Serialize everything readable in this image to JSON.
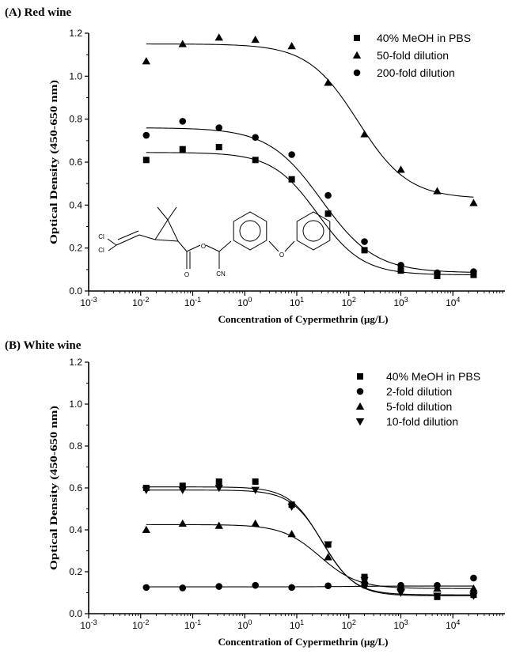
{
  "chart_data": [
    {
      "type": "scatter",
      "title": "(A) Red wine",
      "xlabel": "Concentration of Cypermethrin (μg/L)",
      "ylabel": "Optical Density (450-650 nm)",
      "xscale": "log",
      "xlim": [
        0.001,
        100000
      ],
      "ylim": [
        0.0,
        1.2
      ],
      "xticks": [
        "10-3",
        "10-2",
        "10-1",
        "100",
        "101",
        "102",
        "103",
        "104"
      ],
      "yticks": [
        "0.0",
        "0.2",
        "0.4",
        "0.6",
        "0.8",
        "1.0",
        "1.2"
      ],
      "legend_position": "top-right",
      "fitted_curves": true,
      "x": [
        0.0128,
        0.064,
        0.32,
        1.6,
        8,
        40,
        200,
        1000,
        5000,
        25000
      ],
      "series": [
        {
          "name": "40% MeOH in PBS",
          "marker": "square",
          "values": [
            0.61,
            0.66,
            0.67,
            0.61,
            0.52,
            0.36,
            0.19,
            0.095,
            0.07,
            0.075
          ],
          "fit": {
            "top": 0.645,
            "bottom": 0.075,
            "ec50": 25,
            "slope": 1.0
          }
        },
        {
          "name": "50-fold dilution",
          "marker": "triangle-up",
          "values": [
            1.07,
            1.15,
            1.18,
            1.17,
            1.14,
            0.97,
            0.73,
            0.565,
            0.465,
            0.41
          ],
          "fit": {
            "top": 1.15,
            "bottom": 0.43,
            "ec50": 150,
            "slope": 0.9
          }
        },
        {
          "name": "200-fold dilution",
          "marker": "circle",
          "values": [
            0.725,
            0.79,
            0.76,
            0.715,
            0.635,
            0.445,
            0.23,
            0.12,
            0.085,
            0.09
          ],
          "fit": {
            "top": 0.76,
            "bottom": 0.085,
            "ec50": 30,
            "slope": 0.85
          }
        }
      ],
      "annotations": [
        "Cl",
        "Cl",
        "O",
        "O",
        "CN",
        "O"
      ]
    },
    {
      "type": "scatter",
      "title": "(B) White wine",
      "xlabel": "Concentration of Cypermethrin (μg/L)",
      "ylabel": "Optical Density (450-650 nm)",
      "xscale": "log",
      "xlim": [
        0.001,
        100000
      ],
      "ylim": [
        0.0,
        1.2
      ],
      "xticks": [
        "10-3",
        "10-2",
        "10-1",
        "100",
        "101",
        "102",
        "103",
        "104"
      ],
      "yticks": [
        "0.0",
        "0.2",
        "0.4",
        "0.6",
        "0.8",
        "1.0",
        "1.2"
      ],
      "legend_position": "top-right",
      "fitted_curves": true,
      "x": [
        0.0128,
        0.064,
        0.32,
        1.6,
        8,
        40,
        200,
        1000,
        5000,
        25000
      ],
      "series": [
        {
          "name": "40% MeOH in PBS",
          "marker": "square",
          "values": [
            0.6,
            0.61,
            0.63,
            0.63,
            0.52,
            0.33,
            0.175,
            0.12,
            0.08,
            0.09
          ],
          "fit": {
            "top": 0.605,
            "bottom": 0.09,
            "ec50": 30,
            "slope": 1.4
          }
        },
        {
          "name": "2-fold dilution",
          "marker": "circle",
          "values": [
            0.125,
            0.123,
            0.13,
            0.135,
            0.125,
            0.133,
            0.135,
            0.135,
            0.135,
            0.17
          ],
          "fit": {
            "top": 0.128,
            "bottom": 0.132,
            "ec50": 100,
            "slope": 1.0
          }
        },
        {
          "name": "5-fold dilution",
          "marker": "triangle-up",
          "values": [
            0.4,
            0.43,
            0.42,
            0.43,
            0.38,
            0.27,
            0.16,
            0.13,
            0.12,
            0.12
          ],
          "fit": {
            "top": 0.425,
            "bottom": 0.12,
            "ec50": 28,
            "slope": 1.2
          }
        },
        {
          "name": "10-fold dilution",
          "marker": "triangle-down",
          "values": [
            0.59,
            0.59,
            0.6,
            0.59,
            0.51,
            0.33,
            0.16,
            0.1,
            0.085,
            0.085
          ],
          "fit": {
            "top": 0.59,
            "bottom": 0.085,
            "ec50": 32,
            "slope": 1.4
          }
        }
      ]
    }
  ]
}
